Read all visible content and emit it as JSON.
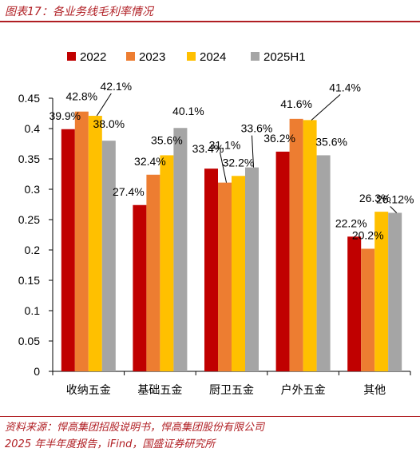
{
  "figure": {
    "title": "图表17：各业务线毛利率情况",
    "source_line1": "资料来源：悍高集团招股说明书，悍高集团股份有限公司",
    "source_line2": "2025 年半年度报告，iFind，国盛证券研究所"
  },
  "chart_data": {
    "type": "bar",
    "title": "",
    "xlabel": "",
    "ylabel": "",
    "ylim": [
      0,
      0.45
    ],
    "yticks": [
      "0",
      "0.05",
      "0.1",
      "0.15",
      "0.2",
      "0.25",
      "0.3",
      "0.35",
      "0.4",
      "0.45"
    ],
    "grid": false,
    "legend": "top",
    "categories": [
      "收纳五金",
      "基础五金",
      "厨卫五金",
      "户外五金",
      "其他"
    ],
    "series": [
      {
        "name": "2022",
        "color": "#c00000",
        "values": [
          0.399,
          0.274,
          0.334,
          0.362,
          0.222
        ],
        "labels": [
          "39.9%",
          "27.4%",
          "33.4%",
          "36.2%",
          "22.2%"
        ]
      },
      {
        "name": "2023",
        "color": "#ed7d31",
        "values": [
          0.428,
          0.324,
          0.311,
          0.416,
          0.202
        ],
        "labels": [
          "42.8%",
          "32.4%",
          "31.1%",
          "41.6%",
          "20.2%"
        ]
      },
      {
        "name": "2024",
        "color": "#ffc000",
        "values": [
          0.421,
          0.356,
          0.322,
          0.414,
          0.263
        ],
        "labels": [
          "42.1%",
          "35.6%",
          "32.2%",
          "41.4%",
          "26.3%"
        ]
      },
      {
        "name": "2025H1",
        "color": "#a5a5a5",
        "values": [
          0.38,
          0.401,
          0.336,
          0.356,
          0.2612
        ],
        "labels": [
          "38.0%",
          "40.1%",
          "33.6%",
          "35.6%",
          "26.12%"
        ]
      }
    ]
  }
}
